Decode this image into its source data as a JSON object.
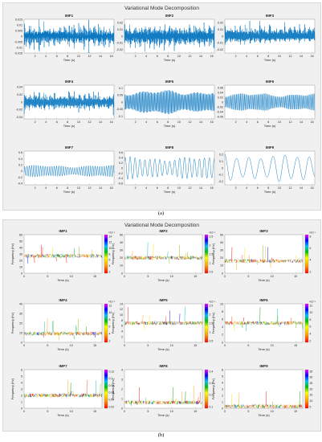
{
  "figure_a": {
    "title": "Variational Mode Decomposition",
    "caption": "(a)",
    "xlabel": "Time (s)",
    "panels": [
      {
        "title": "IMF1",
        "yticks": [
          "0.015",
          "0.01",
          "0.005",
          "0",
          "-0.005",
          "-0.01",
          "-0.015"
        ],
        "ylim": [
          -0.015,
          0.015
        ],
        "amp": 0.011,
        "freq": 9.0,
        "burst": true
      },
      {
        "title": "IMF2",
        "yticks": [
          "0.02",
          "0.01",
          "0",
          "-0.01",
          "-0.02"
        ],
        "ylim": [
          -0.025,
          0.025
        ],
        "amp": 0.018,
        "freq": 8.0,
        "burst": true
      },
      {
        "title": "IMF3",
        "yticks": [
          "0.02",
          "0.01",
          "0",
          "-0.01",
          "-0.02"
        ],
        "ylim": [
          -0.025,
          0.025
        ],
        "amp": 0.015,
        "freq": 7.0,
        "burst": true
      },
      {
        "title": "IMF4",
        "yticks": [
          "0.04",
          "0.02",
          "0",
          "-0.02",
          "-0.04"
        ],
        "ylim": [
          -0.045,
          0.045
        ],
        "amp": 0.025,
        "freq": 6.0,
        "burst": true
      },
      {
        "title": "IMF5",
        "yticks": [
          "0.1",
          "0.05",
          "0",
          "-0.05",
          "-0.1"
        ],
        "ylim": [
          -0.12,
          0.12
        ],
        "amp": 0.08,
        "freq": 5.0,
        "burst": false
      },
      {
        "title": "IMF6",
        "yticks": [
          "0.06",
          "0.04",
          "0.02",
          "0",
          "-0.02",
          "-0.04",
          "-0.06"
        ],
        "ylim": [
          -0.07,
          0.07
        ],
        "amp": 0.035,
        "freq": 4.0,
        "burst": false
      },
      {
        "title": "IMF7",
        "yticks": [
          "0.6",
          "0.4",
          "0.2",
          "0",
          "-0.2",
          "-0.4"
        ],
        "ylim": [
          -0.45,
          0.65
        ],
        "amp": 0.18,
        "freq": 2.4,
        "burst": false
      },
      {
        "title": "IMF8",
        "yticks": [
          "0.6",
          "0.4",
          "0.2",
          "0",
          "-0.2",
          "-0.4",
          "-0.6"
        ],
        "ylim": [
          -0.65,
          0.65
        ],
        "amp": 0.4,
        "freq": 1.1,
        "burst": false
      },
      {
        "title": "IMF9",
        "yticks": [
          "0.2",
          "0.1",
          "0",
          "-0.1",
          "-0.2"
        ],
        "ylim": [
          -0.25,
          0.25
        ],
        "amp": 0.19,
        "freq": 0.45,
        "burst": false
      }
    ],
    "xticks": [
      "2",
      "4",
      "6",
      "8",
      "10",
      "12",
      "14",
      "16"
    ]
  },
  "figure_b": {
    "title": "Variational Mode Decomposition",
    "caption": "(b)",
    "xlabel": "Time (s)",
    "ylabel": "Frequency (Hz)",
    "xticks": [
      "0",
      "5",
      "10",
      "15"
    ],
    "panels": [
      {
        "title": "IMF1",
        "yticks": [
          "60",
          "50",
          "40",
          "30",
          "20",
          "10",
          "0"
        ],
        "ylim": [
          0,
          60
        ],
        "base": 27,
        "cbar": [
          "14",
          "12",
          "10",
          "8",
          "6",
          "4",
          "2"
        ],
        "cbar_exp": "×10⁻³"
      },
      {
        "title": "IMF2",
        "yticks": [
          "50",
          "40",
          "30",
          "20",
          "10",
          "0"
        ],
        "ylim": [
          0,
          50
        ],
        "base": 20,
        "cbar": [
          "2.5",
          "2",
          "1.5",
          "1",
          "0.5"
        ],
        "cbar_exp": "×10⁻³"
      },
      {
        "title": "IMF3",
        "yticks": [
          "50",
          "40",
          "30",
          "20",
          "10",
          "0"
        ],
        "ylim": [
          0,
          50
        ],
        "base": 16,
        "cbar": [
          "8",
          "6",
          "4",
          "2"
        ],
        "cbar_exp": "×10⁻³"
      },
      {
        "title": "IMF4",
        "yticks": [
          "40",
          "30",
          "20",
          "10",
          "0"
        ],
        "ylim": [
          0,
          40
        ],
        "base": 9,
        "cbar": [
          "12",
          "10",
          "8",
          "6",
          "4",
          "2"
        ],
        "cbar_exp": "×10⁻³"
      },
      {
        "title": "IMF5",
        "yticks": [
          "14",
          "12",
          "10",
          "8",
          "6",
          "4",
          "2"
        ],
        "ylim": [
          0,
          14
        ],
        "base": 7,
        "cbar": [
          "2.5",
          "2",
          "1.5",
          "1",
          "0.5"
        ],
        "cbar_exp": "×10⁻³"
      },
      {
        "title": "IMF6",
        "yticks": [
          "10",
          "8",
          "6",
          "4",
          "2",
          "0"
        ],
        "ylim": [
          0,
          10
        ],
        "base": 5,
        "cbar": [
          "12",
          "10",
          "8",
          "6",
          "4",
          "2"
        ],
        "cbar_exp": "×10⁻³"
      },
      {
        "title": "IMF7",
        "yticks": [
          "6",
          "5",
          "4",
          "3",
          "2",
          "1",
          "0"
        ],
        "ylim": [
          0,
          6
        ],
        "base": 2,
        "cbar": [
          "0.12",
          "0.1",
          "0.08",
          "0.06",
          "0.04",
          "0.02"
        ],
        "cbar_exp": ""
      },
      {
        "title": "IMF8",
        "yticks": [
          "4",
          "3",
          "2",
          "1",
          "0"
        ],
        "ylim": [
          0,
          4
        ],
        "base": 0.6,
        "cbar": [
          "0.4",
          "0.3",
          "0.2",
          "0.1"
        ],
        "cbar_exp": ""
      },
      {
        "title": "IMF9",
        "yticks": [
          "6",
          "5",
          "4",
          "3",
          "2",
          "1",
          "0"
        ],
        "ylim": [
          0,
          6
        ],
        "base": 0.3,
        "cbar": [
          "35",
          "30",
          "25",
          "20",
          "15",
          "10",
          "5"
        ],
        "cbar_exp": ""
      }
    ]
  },
  "colors": {
    "line": "#0072bd",
    "panel_bg": "#f0f0f0",
    "axes_bg": "#ffffff"
  },
  "chart_data": [
    {
      "type": "line",
      "title": "Variational Mode Decomposition",
      "xlabel": "Time (s)",
      "ylabel": "",
      "xlim": [
        0,
        16.5
      ],
      "series": [
        {
          "name": "IMF1",
          "ylim": [
            -0.015,
            0.015
          ]
        },
        {
          "name": "IMF2",
          "ylim": [
            -0.025,
            0.025
          ]
        },
        {
          "name": "IMF3",
          "ylim": [
            -0.025,
            0.025
          ]
        },
        {
          "name": "IMF4",
          "ylim": [
            -0.045,
            0.045
          ]
        },
        {
          "name": "IMF5",
          "ylim": [
            -0.12,
            0.12
          ]
        },
        {
          "name": "IMF6",
          "ylim": [
            -0.07,
            0.07
          ]
        },
        {
          "name": "IMF7",
          "ylim": [
            -0.45,
            0.65
          ]
        },
        {
          "name": "IMF8",
          "ylim": [
            -0.65,
            0.65
          ]
        },
        {
          "name": "IMF9",
          "ylim": [
            -0.25,
            0.25
          ]
        }
      ]
    },
    {
      "type": "scatter",
      "title": "Variational Mode Decomposition",
      "xlabel": "Time (s)",
      "ylabel": "Frequency (Hz)",
      "xlim": [
        0,
        16.5
      ],
      "series": [
        {
          "name": "IMF1",
          "ylim": [
            0,
            60
          ]
        },
        {
          "name": "IMF2",
          "ylim": [
            0,
            50
          ]
        },
        {
          "name": "IMF3",
          "ylim": [
            0,
            50
          ]
        },
        {
          "name": "IMF4",
          "ylim": [
            0,
            40
          ]
        },
        {
          "name": "IMF5",
          "ylim": [
            0,
            14
          ]
        },
        {
          "name": "IMF6",
          "ylim": [
            0,
            10
          ]
        },
        {
          "name": "IMF7",
          "ylim": [
            0,
            6
          ]
        },
        {
          "name": "IMF8",
          "ylim": [
            0,
            4
          ]
        },
        {
          "name": "IMF9",
          "ylim": [
            0,
            6
          ]
        }
      ]
    }
  ]
}
